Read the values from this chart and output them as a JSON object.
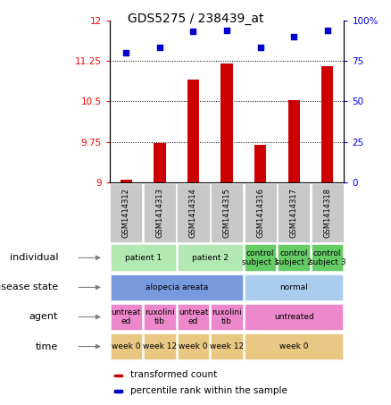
{
  "title": "GDS5275 / 238439_at",
  "samples": [
    "GSM1414312",
    "GSM1414313",
    "GSM1414314",
    "GSM1414315",
    "GSM1414316",
    "GSM1414317",
    "GSM1414318"
  ],
  "transformed_count": [
    9.05,
    9.72,
    10.9,
    11.2,
    9.7,
    10.52,
    11.15
  ],
  "percentile_rank": [
    80,
    83,
    93,
    94,
    83,
    90,
    94
  ],
  "ylim_left": [
    9,
    12
  ],
  "yticks_left": [
    9,
    9.75,
    10.5,
    11.25,
    12
  ],
  "yticks_right": [
    0,
    25,
    50,
    75,
    100
  ],
  "bar_color": "#cc0000",
  "dot_color": "#0000cc",
  "sample_bg": "#c8c8c8",
  "rows": [
    {
      "label": "individual",
      "cells": [
        {
          "text": "patient 1",
          "span": 2,
          "color": "#b2e8b2"
        },
        {
          "text": "patient 2",
          "span": 2,
          "color": "#b2e8b2"
        },
        {
          "text": "control\nsubject 1",
          "span": 1,
          "color": "#66cc66"
        },
        {
          "text": "control\nsubject 2",
          "span": 1,
          "color": "#66cc66"
        },
        {
          "text": "control\nsubject 3",
          "span": 1,
          "color": "#66cc66"
        }
      ]
    },
    {
      "label": "disease state",
      "cells": [
        {
          "text": "alopecia areata",
          "span": 4,
          "color": "#7799dd"
        },
        {
          "text": "normal",
          "span": 3,
          "color": "#aaccee"
        }
      ]
    },
    {
      "label": "agent",
      "cells": [
        {
          "text": "untreat\ned",
          "span": 1,
          "color": "#ee88cc"
        },
        {
          "text": "ruxolini\ntib",
          "span": 1,
          "color": "#ee88cc"
        },
        {
          "text": "untreat\ned",
          "span": 1,
          "color": "#ee88cc"
        },
        {
          "text": "ruxolini\ntib",
          "span": 1,
          "color": "#ee88cc"
        },
        {
          "text": "untreated",
          "span": 3,
          "color": "#ee88cc"
        }
      ]
    },
    {
      "label": "time",
      "cells": [
        {
          "text": "week 0",
          "span": 1,
          "color": "#e8c882"
        },
        {
          "text": "week 12",
          "span": 1,
          "color": "#e8c882"
        },
        {
          "text": "week 0",
          "span": 1,
          "color": "#e8c882"
        },
        {
          "text": "week 12",
          "span": 1,
          "color": "#e8c882"
        },
        {
          "text": "week 0",
          "span": 3,
          "color": "#e8c882"
        }
      ]
    }
  ]
}
